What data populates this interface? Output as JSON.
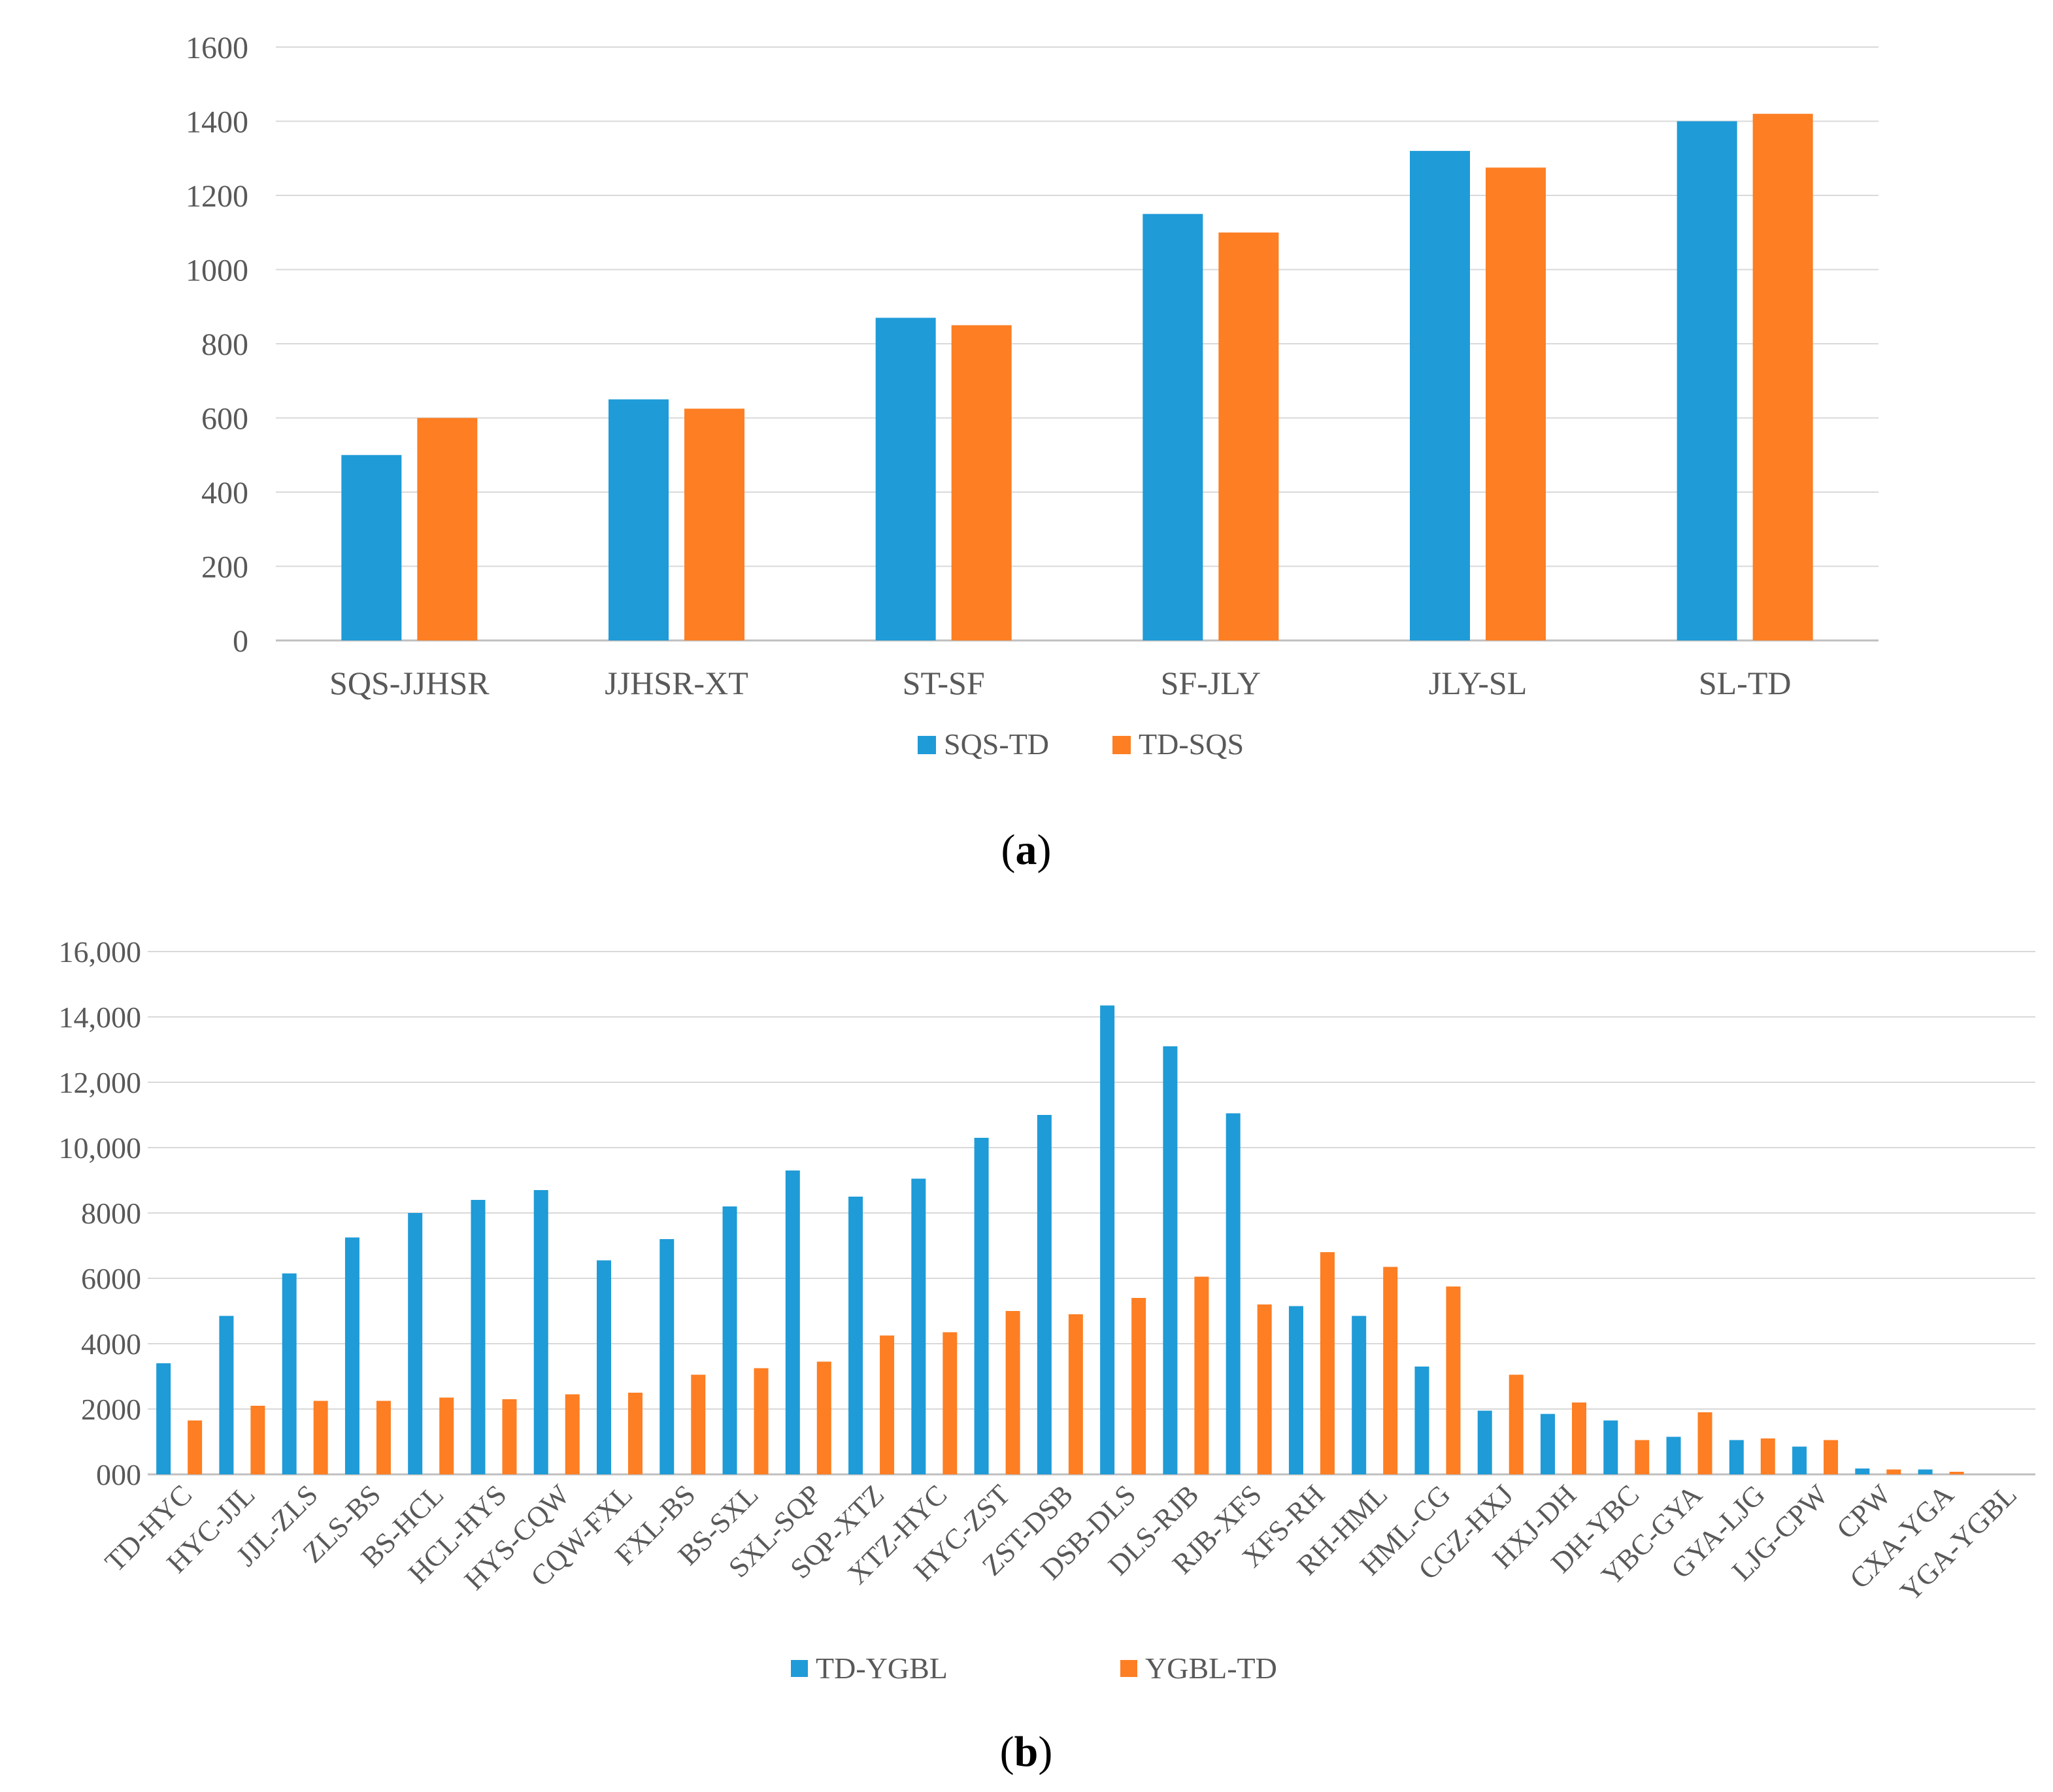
{
  "colors": {
    "series1": "#1f9bd7",
    "series2": "#fd7e23",
    "grid": "#d9d9d9",
    "axis": "#bfbfbf"
  },
  "chart_data": [
    {
      "type": "bar",
      "caption_letter": "a",
      "categories": [
        "SQS-JJHSR",
        "JJHSR-XT",
        "ST-SF",
        "SF-JLY",
        "JLY-SL",
        "SL-TD"
      ],
      "series": [
        {
          "name": "SQS-TD",
          "values": [
            500,
            650,
            870,
            1150,
            1320,
            1400
          ]
        },
        {
          "name": "TD-SQS",
          "values": [
            600,
            625,
            850,
            1100,
            1275,
            1420
          ]
        }
      ],
      "ylim": [
        0,
        1600
      ],
      "yticks": [
        "0",
        "200",
        "400",
        "600",
        "800",
        "1000",
        "1200",
        "1400",
        "1600"
      ],
      "grid": true,
      "legend": "bottom"
    },
    {
      "type": "bar",
      "caption_letter": "b",
      "categories": [
        "TD-HYC",
        "HYC-JJL",
        "JJL-ZLS",
        "ZLS-BS",
        "BS-HCL",
        "HCL-HYS",
        "HYS-CQW",
        "CQW-FXL",
        "FXL-BS",
        "BS-SXL",
        "SXL-SQP",
        "SQP-XTZ",
        "XTZ-HYC",
        "HYC-ZST",
        "ZST-DSB",
        "DSB-DLS",
        "DLS-RJB",
        "RJB-XFS",
        "XFS-RH",
        "RH-HML",
        "HML-CG",
        "CGZ-HXJ",
        "HXJ-DH",
        "DH-YBC",
        "YBC-GYA",
        "GYA-LJG",
        "LJG-CPW",
        "CPW",
        "CXA-YGA",
        "YGA-YGBL"
      ],
      "series": [
        {
          "name": "TD-YGBL",
          "values": [
            3400,
            4850,
            6150,
            7250,
            8000,
            8400,
            8700,
            6550,
            7200,
            8200,
            9300,
            8500,
            9050,
            10300,
            11000,
            14350,
            13100,
            11050,
            5150,
            4850,
            3300,
            1950,
            1850,
            1650,
            1150,
            1050,
            850,
            180,
            150,
            0
          ]
        },
        {
          "name": "YGBL-TD",
          "values": [
            1650,
            2100,
            2250,
            2250,
            2350,
            2300,
            2450,
            2500,
            3050,
            3250,
            3450,
            4250,
            4350,
            5000,
            4900,
            5400,
            6050,
            5200,
            6800,
            6350,
            5750,
            3050,
            2200,
            1050,
            1900,
            1100,
            1050,
            150,
            80,
            0
          ]
        }
      ],
      "ylim": [
        0,
        16000
      ],
      "yticks": [
        "000",
        "2000",
        "4000",
        "6000",
        "8000",
        "10,000",
        "12,000",
        "14,000",
        "16,000"
      ],
      "grid": true,
      "legend": "bottom"
    }
  ]
}
